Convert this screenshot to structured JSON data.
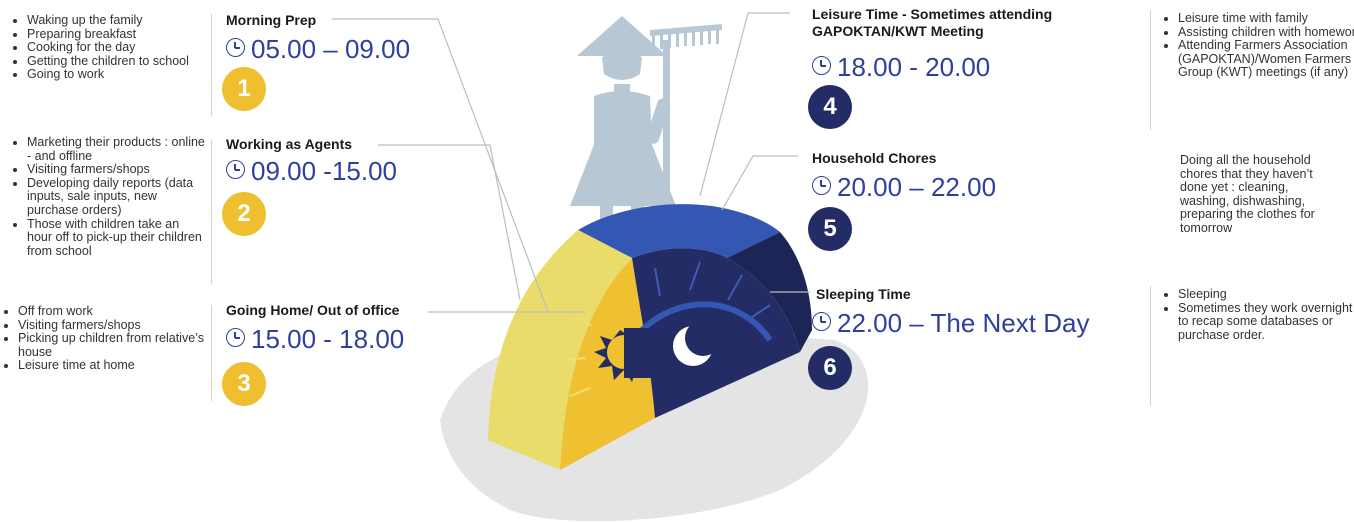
{
  "colors": {
    "yellow": "#f0bf2f",
    "navy": "#232c64",
    "blue": "#3557b4",
    "timeText": "#2f3f9e",
    "figure": "#b8c7d4"
  },
  "icons": {
    "time": "clock-icon",
    "day": "sun-icon",
    "night": "moon-icon",
    "figure": "farmer-woman-with-rake-icon"
  },
  "sections": [
    {
      "number": "1",
      "title": "Morning Prep",
      "time": "05.00 – 09.00",
      "details": [
        "Waking up the family",
        "Preparing breakfast",
        "Cooking for the day",
        "Getting the children to school",
        "Going to work"
      ]
    },
    {
      "number": "2",
      "title": "Working as Agents",
      "time": "09.00 -15.00",
      "details": [
        "Marketing their products : online - and offline",
        "Visiting farmers/shops",
        "Developing daily reports (data inputs, sale inputs, new purchase orders)",
        "Those with children take an hour off to pick-up their children from school"
      ]
    },
    {
      "number": "3",
      "title": "Going Home/ Out of office",
      "time": "15.00 - 18.00",
      "details": [
        "Off from work",
        "Visiting farmers/shops",
        "Picking up children from relative’s house",
        "Leisure time at home"
      ]
    },
    {
      "number": "4",
      "title": "Leisure Time - Sometimes attending GAPOKTAN/KWT Meeting",
      "time": "18.00 - 20.00",
      "details": [
        "Leisure time with family",
        "Assisting children with homework",
        "Attending Farmers Association (GAPOKTAN)/Women Farmers Group (KWT) meetings (if any)"
      ]
    },
    {
      "number": "5",
      "title": "Household Chores",
      "time": "20.00 – 22.00",
      "details": "Doing all the household chores that they haven’t done yet : cleaning, washing, dishwashing, preparing the clothes for tomorrow"
    },
    {
      "number": "6",
      "title": "Sleeping Time",
      "time": "22.00 – The Next Day",
      "details": [
        "Sleeping",
        "Sometimes they work overnight to recap some databases or purchase order."
      ]
    }
  ]
}
